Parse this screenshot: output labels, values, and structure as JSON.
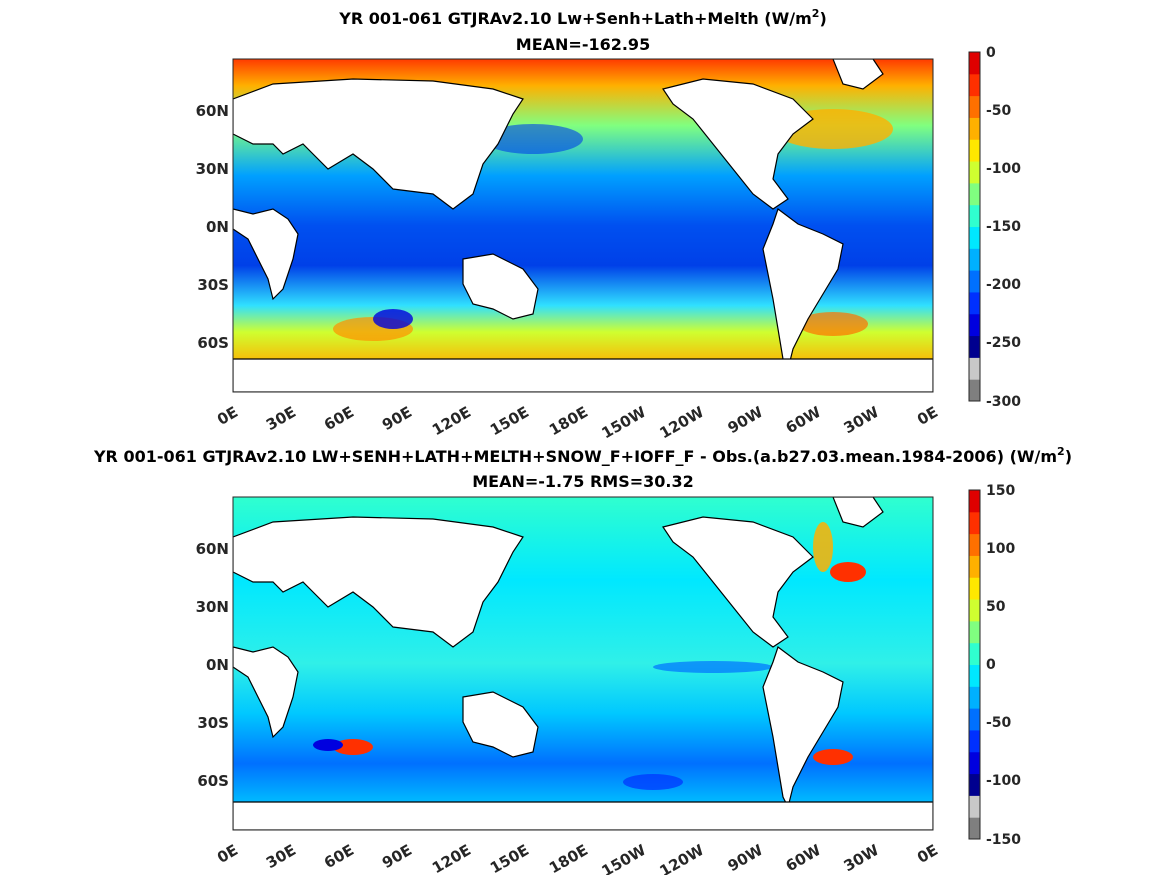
{
  "panels": [
    {
      "title_main": "YR 001-061 GTJRAv2.10 Lw+Senh+Lath+Melth (W/m",
      "title_sup": "2",
      "title_close": ")",
      "subtitle": "MEAN=-162.95",
      "lat_ticks": [
        "60N",
        "30N",
        "0N",
        "30S",
        "60S"
      ],
      "lon_ticks": [
        "0E",
        "30E",
        "60E",
        "90E",
        "120E",
        "150E",
        "180E",
        "150W",
        "120W",
        "90W",
        "60W",
        "30W",
        "0E"
      ],
      "colorbar": {
        "ticks": [
          "0",
          "-50",
          "-100",
          "-150",
          "-200",
          "-250",
          "-300"
        ],
        "range": [
          -300,
          0
        ]
      }
    },
    {
      "title_main": "YR 001-061 GTJRAv2.10 LW+SENH+LATH+MELTH+SNOW_F+IOFF_F - Obs.(a.b27.03.mean.1984-2006) (W/m",
      "title_sup": "2",
      "title_close": ")",
      "subtitle": "MEAN=-1.75 RMS=30.32",
      "lat_ticks": [
        "60N",
        "30N",
        "0N",
        "30S",
        "60S"
      ],
      "lon_ticks": [
        "0E",
        "30E",
        "60E",
        "90E",
        "120E",
        "150E",
        "180E",
        "150W",
        "120W",
        "90W",
        "60W",
        "30W",
        "0E"
      ],
      "colorbar": {
        "ticks": [
          "150",
          "100",
          "50",
          "0",
          "-50",
          "-100",
          "-150"
        ],
        "range": [
          -150,
          150
        ]
      }
    }
  ],
  "colors": {
    "colormap": [
      "#7f7f7f",
      "#c8c8c8",
      "#00008f",
      "#0000df",
      "#0030ff",
      "#0070ff",
      "#00b0ff",
      "#00e8ff",
      "#30ffcf",
      "#80ff80",
      "#cfff30",
      "#ffe800",
      "#ffb000",
      "#ff7000",
      "#ff3000",
      "#df0000"
    ],
    "land": "#ffffff",
    "coast": "#000000"
  }
}
